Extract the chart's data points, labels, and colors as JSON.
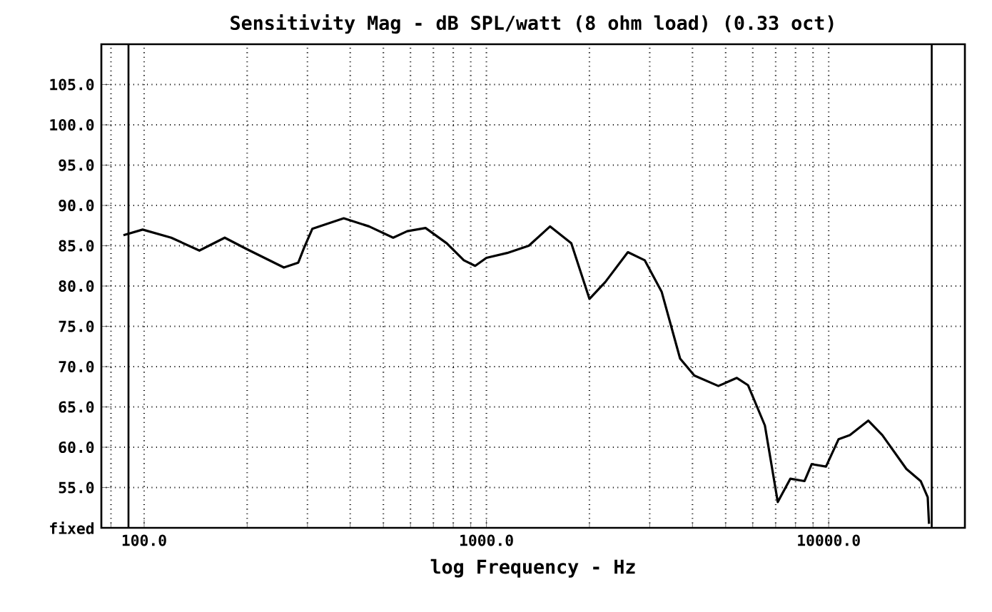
{
  "chart_data": {
    "type": "line",
    "title": "Sensitivity Mag - dB SPL/watt (8 ohm load) (0.33 oct)",
    "xlabel": "log Frequency - Hz",
    "log": "x",
    "grid": true,
    "marker": "none",
    "line_style": "solid",
    "xlim": [
      75,
      25000
    ],
    "ylim": [
      50,
      110
    ],
    "xticks": [
      {
        "value": 100,
        "label": "100.0"
      },
      {
        "value": 1000,
        "label": "1000.0"
      },
      {
        "value": 10000,
        "label": "10000.0"
      }
    ],
    "yticks": [
      {
        "value": 50,
        "label": "fixed"
      },
      {
        "value": 55,
        "label": "55.0"
      },
      {
        "value": 60,
        "label": "60.0"
      },
      {
        "value": 65,
        "label": "65.0"
      },
      {
        "value": 70,
        "label": "70.0"
      },
      {
        "value": 75,
        "label": "75.0"
      },
      {
        "value": 80,
        "label": "80.0"
      },
      {
        "value": 85,
        "label": "85.0"
      },
      {
        "value": 90,
        "label": "90.0"
      },
      {
        "value": 95,
        "label": "95.0"
      },
      {
        "value": 100,
        "label": "100.0"
      },
      {
        "value": 105,
        "label": "105.0"
      }
    ],
    "ref_lines": [
      {
        "axis": "x",
        "value": 90,
        "color": "#000000",
        "line_style": "solid"
      },
      {
        "axis": "x",
        "value": 20000,
        "color": "#000000",
        "line_style": "solid"
      }
    ],
    "series": [
      {
        "color": "#000000",
        "x": [
          87,
          99,
          120,
          145,
          172,
          199,
          256,
          282,
          293,
          310,
          383,
          454,
          534,
          587,
          664,
          766,
          859,
          927,
          1000,
          1150,
          1330,
          1535,
          1770,
          2000,
          2225,
          2590,
          2900,
          3250,
          3680,
          4050,
          4760,
          5390,
          5810,
          6510,
          7100,
          7730,
          8500,
          8920,
          9820,
          10690,
          11530,
          13050,
          14350,
          16870,
          18570,
          19470,
          19640
        ],
        "values": [
          86.3,
          87.0,
          86.0,
          84.4,
          86.0,
          84.6,
          82.3,
          82.9,
          84.7,
          87.1,
          88.4,
          87.4,
          86.0,
          86.8,
          87.2,
          85.3,
          83.2,
          82.5,
          83.5,
          84.1,
          85.0,
          87.4,
          85.3,
          78.4,
          80.5,
          84.2,
          83.2,
          79.3,
          71.0,
          68.9,
          67.6,
          68.6,
          67.7,
          62.7,
          53.2,
          56.1,
          55.8,
          57.9,
          57.6,
          61.0,
          61.5,
          63.3,
          61.5,
          57.3,
          55.8,
          53.8,
          50.5
        ]
      }
    ]
  }
}
